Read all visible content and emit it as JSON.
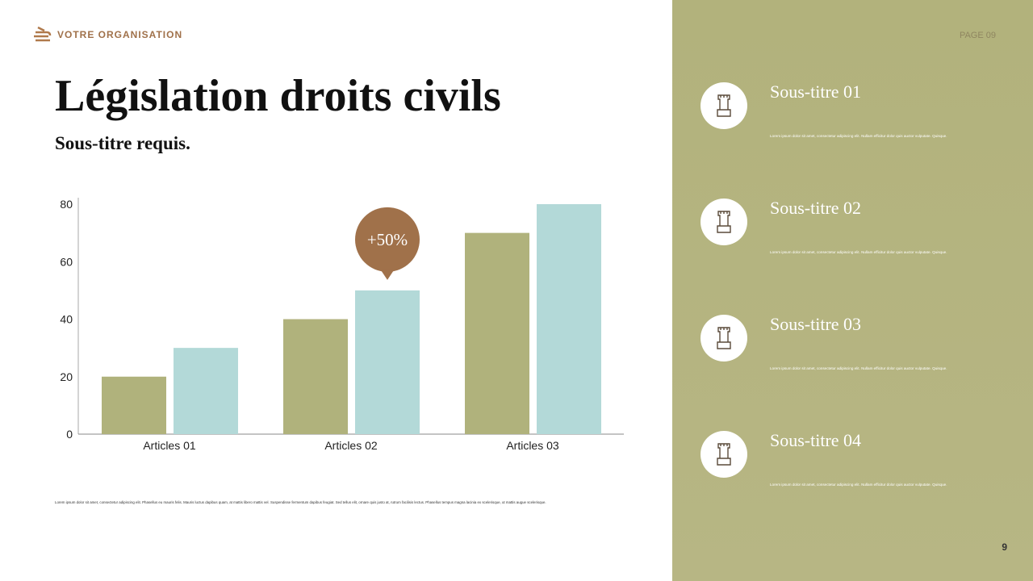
{
  "header": {
    "organisation": "VOTRE ORGANISATION",
    "page_label": "PAGE 09"
  },
  "title": "Législation droits civils",
  "subtitle": "Sous-titre requis.",
  "chart_data": {
    "type": "bar",
    "categories": [
      "Articles 01",
      "Articles 02",
      "Articles 03"
    ],
    "series": [
      {
        "color": "#b0b27c",
        "values": [
          20,
          40,
          70
        ]
      },
      {
        "color": "#b3d9d8",
        "values": [
          30,
          50,
          80
        ]
      }
    ],
    "ylim": [
      0,
      80
    ],
    "yticks": [
      0,
      20,
      40,
      60,
      80
    ],
    "grid": false,
    "annotation": "+50%",
    "annotation_color": "#a0714a"
  },
  "footnote": "Lorem ipsum dolor sit amet, consectetur adipiscing elit. Phasellus eu mauris felis. Mauris luctus dapibus quam, at mattis libero mattis vel. Suspendisse fermentum dapibus feugiat. Sed tellus elit, ornare quis justo at, rutrum facilisis lectus. Phasellus tempus magna lacinia ex scelerisque, ut mattis augue scelerisque.",
  "items": [
    {
      "title": "Sous-titre 01",
      "text": "Lorem ipsum dolor sit amet, consectetur adipiscing elit. Nullam efficitur dolor quis auctor vulputate. Quisque."
    },
    {
      "title": "Sous-titre 02",
      "text": "Lorem ipsum dolor sit amet, consectetur adipiscing elit. Nullam efficitur dolor quis auctor vulputate. Quisque."
    },
    {
      "title": "Sous-titre 03",
      "text": "Lorem ipsum dolor sit amet, consectetur adipiscing elit. Nullam efficitur dolor quis auctor vulputate. Quisque."
    },
    {
      "title": "Sous-titre 04",
      "text": "Lorem ipsum dolor sit amet, consectetur adipiscing elit. Nullam efficitur dolor quis auctor vulputate. Quisque."
    }
  ],
  "page_number": "9"
}
